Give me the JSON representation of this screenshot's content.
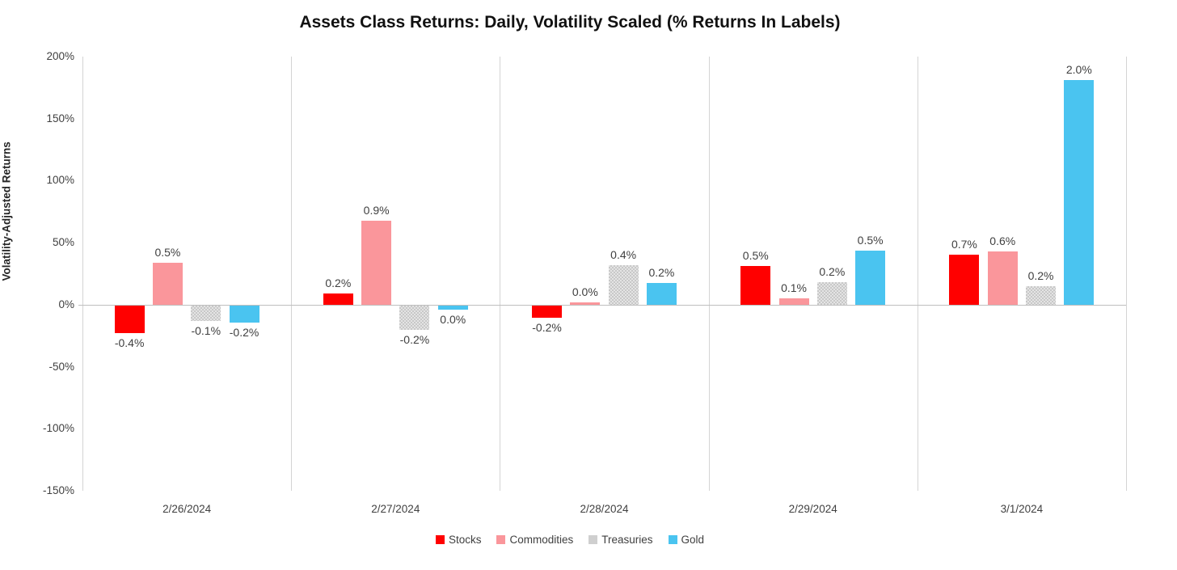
{
  "chart_data": {
    "type": "bar",
    "title": "Assets Class Returns: Daily, Volatility Scaled (% Returns In Labels)",
    "ylabel": "Volatility-Adjusted Returns",
    "xlabel": "",
    "categories": [
      "2/26/2024",
      "2/27/2024",
      "2/28/2024",
      "2/29/2024",
      "3/1/2024"
    ],
    "y_axis": {
      "min": -150,
      "max": 200,
      "tick_step": 50,
      "tick_labels": [
        "200%",
        "150%",
        "100%",
        "50%",
        "0%",
        "-50%",
        "-100%",
        "-150%"
      ],
      "unit": "percent"
    },
    "grid": "vertical-category-separators-and-zero-line-only",
    "legend_position": "bottom",
    "series": [
      {
        "name": "Stocks",
        "color": "#ff0000",
        "pattern": "solid",
        "return_labels": [
          "-0.4%",
          "0.2%",
          "-0.2%",
          "0.5%",
          "0.7%"
        ],
        "scaled_values": [
          -22,
          9,
          -10,
          31,
          40
        ]
      },
      {
        "name": "Commodities",
        "color": "#fa969b",
        "pattern": "solid",
        "return_labels": [
          "0.5%",
          "0.9%",
          "0.0%",
          "0.1%",
          "0.6%"
        ],
        "scaled_values": [
          33.5,
          68,
          2,
          5,
          43
        ]
      },
      {
        "name": "Treasuries",
        "color": "#d9d9d9",
        "pattern": "dotted",
        "return_labels": [
          "-0.1%",
          "-0.2%",
          "0.4%",
          "0.2%",
          "0.2%"
        ],
        "scaled_values": [
          -12.5,
          -19.5,
          32,
          18,
          15
        ]
      },
      {
        "name": "Gold",
        "color": "#4ac4f0",
        "pattern": "solid",
        "return_labels": [
          "-0.2%",
          "0.0%",
          "0.2%",
          "0.5%",
          "2.0%"
        ],
        "scaled_values": [
          -13.5,
          -3.5,
          17.5,
          43.5,
          181
        ]
      }
    ]
  }
}
